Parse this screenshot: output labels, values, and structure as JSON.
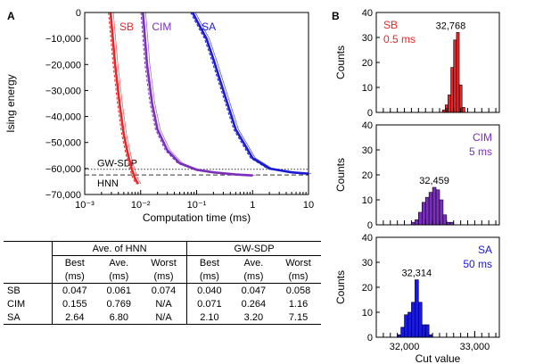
{
  "panel_a_label": "A",
  "panel_b_label": "B",
  "chart_data": [
    {
      "type": "line",
      "xscale": "log",
      "xlabel": "Computation time (ms)",
      "ylabel": "Ising energy",
      "xlim": [
        0.001,
        10
      ],
      "ylim": [
        -70000,
        0
      ],
      "xtick_labels": [
        "10⁻³",
        "10⁻²",
        "10⁻¹",
        "1",
        "10"
      ],
      "xtick_values": [
        0.001,
        0.01,
        0.1,
        1,
        10
      ],
      "ytick_values": [
        0,
        -10000,
        -20000,
        -30000,
        -40000,
        -50000,
        -60000,
        -70000
      ],
      "ytick_labels": [
        "0",
        "−10,000",
        "−20,000",
        "−30,000",
        "−40,000",
        "−50,000",
        "−60,000",
        "−70,000"
      ],
      "reference_lines": [
        {
          "label": "GW-SDP",
          "y": -60300,
          "style": "dotted"
        },
        {
          "label": "HNN",
          "y": -62500,
          "style": "dashed"
        }
      ],
      "series": [
        {
          "name": "SB",
          "color": "#e8262a",
          "x": [
            0.0029,
            0.0035,
            0.0042,
            0.005,
            0.006,
            0.007,
            0.008,
            0.009
          ],
          "y": [
            0,
            -20000,
            -35000,
            -47000,
            -55000,
            -60500,
            -64000,
            -66000
          ]
        },
        {
          "name": "CIM",
          "color": "#7b2fbe",
          "x": [
            0.011,
            0.013,
            0.016,
            0.02,
            0.03,
            0.05,
            0.1,
            0.2,
            0.5,
            1
          ],
          "y": [
            0,
            -20000,
            -35000,
            -45000,
            -53000,
            -58000,
            -60500,
            -61500,
            -62300,
            -62700
          ]
        },
        {
          "name": "SA",
          "color": "#1a1ad6",
          "x": [
            0.085,
            0.1,
            0.15,
            0.2,
            0.3,
            0.5,
            1,
            2,
            5,
            10
          ],
          "y": [
            0,
            -3000,
            -10000,
            -18000,
            -30000,
            -45000,
            -56000,
            -60000,
            -61500,
            -62000
          ]
        }
      ]
    },
    {
      "type": "bar",
      "title": "SB",
      "subtitle": "0.5 ms",
      "peak_label": "32,768",
      "color": "#e8262a",
      "ylabel": "Counts",
      "ylim": [
        0,
        40
      ],
      "yticks": [
        0,
        10,
        20,
        30,
        40
      ],
      "bins": [
        32540,
        32580,
        32620,
        32660,
        32700,
        32740,
        32780,
        32820
      ],
      "values": [
        1,
        3,
        7,
        18,
        29,
        32,
        11,
        2
      ]
    },
    {
      "type": "bar",
      "title": "CIM",
      "subtitle": "5 ms",
      "peak_label": "32,459",
      "color": "#7b2fbe",
      "ylabel": "Counts",
      "ylim": [
        0,
        40
      ],
      "yticks": [
        0,
        10,
        20,
        30,
        40
      ],
      "bins": [
        32100,
        32150,
        32200,
        32250,
        32300,
        32350,
        32400,
        32450,
        32500,
        32550,
        32600,
        32650
      ],
      "values": [
        1,
        2,
        5,
        9,
        11,
        13,
        15,
        14,
        10,
        4,
        1,
        1
      ]
    },
    {
      "type": "bar",
      "title": "SA",
      "subtitle": "50 ms",
      "peak_label": "32,314",
      "color": "#1a1ad6",
      "ylabel": "Counts",
      "xlabel": "Cut value",
      "ylim": [
        0,
        40
      ],
      "yticks": [
        0,
        10,
        20,
        30,
        40
      ],
      "xtick_labels": [
        "32,000",
        "33,000"
      ],
      "xtick_values": [
        32000,
        33000
      ],
      "xlim": [
        31600,
        33350
      ],
      "bins": [
        31900,
        31950,
        32000,
        32050,
        32100,
        32150,
        32200,
        32250,
        32300,
        32350
      ],
      "values": [
        1,
        4,
        9,
        10,
        14,
        23,
        14,
        5,
        5,
        1
      ]
    }
  ],
  "table": {
    "group1": "Ave. of HNN",
    "group2": "GW-SDP",
    "headers": [
      [
        "Best",
        "(ms)"
      ],
      [
        "Ave.",
        "(ms)"
      ],
      [
        "Worst",
        "(ms)"
      ],
      [
        "Best",
        "(ms)"
      ],
      [
        "Ave.",
        "(ms)"
      ],
      [
        "Worst",
        "(ms)"
      ]
    ],
    "rows": [
      {
        "label": "SB",
        "cells": [
          "0.047",
          "0.061",
          "0.074",
          "0.040",
          "0.047",
          "0.058"
        ]
      },
      {
        "label": "CIM",
        "cells": [
          "0.155",
          "0.769",
          "N/A",
          "0.071",
          "0.264",
          "1.16"
        ]
      },
      {
        "label": "SA",
        "cells": [
          "2.64",
          "6.80",
          "N/A",
          "2.10",
          "3.20",
          "7.15"
        ]
      }
    ]
  }
}
